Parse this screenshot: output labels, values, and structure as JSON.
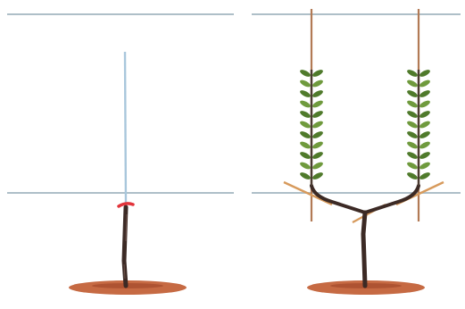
{
  "illustration": {
    "panels": [
      {
        "stage": "young-tree-cut-back"
      },
      {
        "stage": "double-cordon-trained"
      }
    ],
    "colors": {
      "background": "#ffffff",
      "wire": "#aebfc8",
      "cane": "#a9c7dc",
      "trunk": "#3c2a25",
      "cut_mark": "#e2343b",
      "soil": "#c66a43",
      "soil_dark": "#9a3f24",
      "stake": "#b27a55",
      "leaf": "#6f9a3d",
      "leaf_dark": "#4f7a2b"
    }
  }
}
